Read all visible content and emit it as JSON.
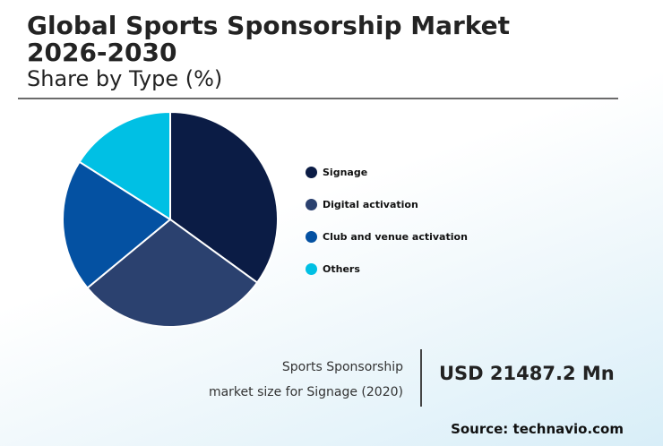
{
  "header": {
    "title": "Global Sports Sponsorship Market 2026-2030",
    "subtitle": "Share by Type (%)"
  },
  "chart_data": {
    "type": "pie",
    "categories": [
      "Signage",
      "Digital activation",
      "Club and venue activation",
      "Others"
    ],
    "values": [
      35,
      29,
      20,
      16
    ],
    "colors": [
      "#0b1c45",
      "#2b416f",
      "#0451a2",
      "#00c0e4"
    ],
    "legend_position": "right"
  },
  "stat": {
    "label_line1": "Sports Sponsorship",
    "label_line2": "market size for Signage (2020)",
    "value": "USD 21487.2 Mn"
  },
  "footer": {
    "source": "Source: technavio.com"
  }
}
